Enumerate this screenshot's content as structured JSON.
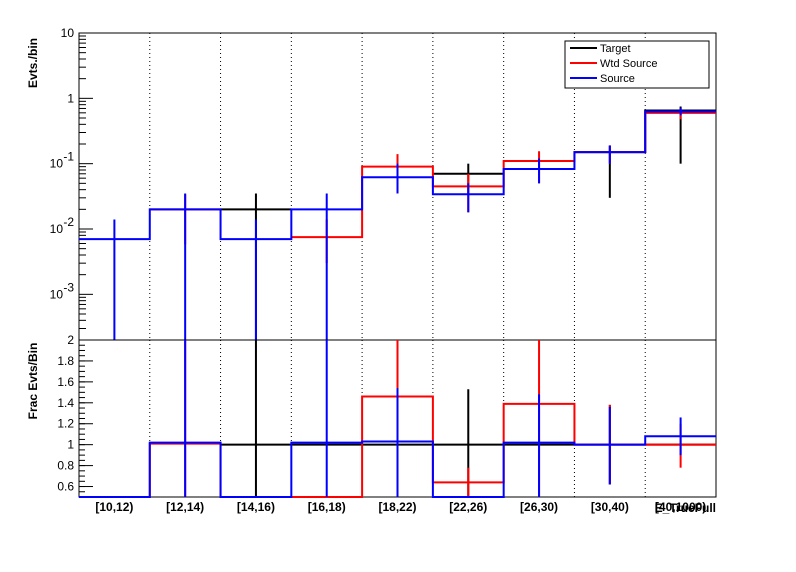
{
  "chart_data": [
    {
      "type": "line",
      "panel": "top",
      "ylabel": "Evts./bin",
      "yscale": "log",
      "ylim": [
        0.0002,
        10
      ],
      "y_ticks": [
        {
          "value": 10,
          "label": "10"
        },
        {
          "value": 1,
          "label": "1"
        },
        {
          "value": 0.1,
          "label": "10",
          "exp": "-1"
        },
        {
          "value": 0.01,
          "label": "10",
          "exp": "-2"
        },
        {
          "value": 0.001,
          "label": "10",
          "exp": "-3"
        }
      ],
      "categories": [
        "[10,12)",
        "[12,14)",
        "[14,16)",
        "[16,18)",
        "[18,22)",
        "[22,26)",
        "[26,30)",
        "[30,40)",
        "[40,1000)"
      ],
      "grid": "vertical-dotted",
      "legend": {
        "position": "top-right",
        "entries": [
          "Target",
          "Wtd Source",
          "Source"
        ]
      },
      "series": [
        {
          "name": "Target",
          "color": "#000000",
          "values": [
            null,
            null,
            0.02,
            null,
            null,
            0.07,
            null,
            0.15,
            0.65
          ],
          "err_lo": [
            null,
            null,
            null,
            null,
            null,
            0.035,
            null,
            0.03,
            0.1
          ],
          "err_hi": [
            null,
            null,
            0.035,
            null,
            null,
            0.1,
            null,
            0.19,
            0.75
          ]
        },
        {
          "name": "Wtd Source",
          "color": "#ff0000",
          "values": [
            null,
            0.02,
            null,
            0.0075,
            0.09,
            0.045,
            0.11,
            0.15,
            0.6
          ],
          "err_lo": [
            null,
            0.0058,
            null,
            0.003,
            0.035,
            0.018,
            0.05,
            0.1,
            0.48
          ],
          "err_hi": [
            null,
            0.034,
            null,
            0.014,
            0.14,
            0.07,
            0.155,
            0.19,
            0.7
          ]
        },
        {
          "name": "Source",
          "color": "#0000ff",
          "values": [
            0.007,
            0.02,
            0.007,
            0.02,
            0.062,
            0.034,
            0.083,
            0.15,
            0.63
          ],
          "err_lo": [
            null,
            null,
            null,
            null,
            0.035,
            0.018,
            0.05,
            0.1,
            0.55
          ],
          "err_hi": [
            0.014,
            0.035,
            0.014,
            0.035,
            0.1,
            0.05,
            0.12,
            0.19,
            0.72
          ]
        }
      ]
    },
    {
      "type": "line",
      "panel": "bottom",
      "ylabel": "Frac Evts/Bin",
      "ylim": [
        0.5,
        2
      ],
      "y_ticks": [
        0.6,
        0.8,
        1,
        1.2,
        1.4,
        1.6,
        1.8,
        2
      ],
      "categories": [
        "[10,12)",
        "[12,14)",
        "[14,16)",
        "[16,18)",
        "[18,22)",
        "[22,26)",
        "[26,30)",
        "[30,40)",
        "[40,1000)"
      ],
      "xlabel": "E_TrueFull",
      "grid": "vertical-dotted",
      "series": [
        {
          "name": "Target",
          "color": "#000000",
          "values": [
            null,
            null,
            1.0,
            1.0,
            1.0,
            1.0,
            1.0,
            1.0,
            1.0
          ],
          "err_lo": [
            null,
            null,
            0.5,
            null,
            null,
            0.5,
            null,
            0.62,
            null
          ],
          "err_hi": [
            null,
            null,
            2,
            null,
            null,
            1.53,
            null,
            1.38,
            null
          ]
        },
        {
          "name": "Wtd Source",
          "color": "#ff0000",
          "values": [
            0.5,
            1.01,
            0.5,
            0.5,
            1.46,
            0.64,
            1.39,
            1.0,
            1.0
          ],
          "err_lo": [
            null,
            0.5,
            null,
            null,
            0.5,
            0.5,
            0.5,
            0.62,
            0.78
          ],
          "err_hi": [
            null,
            2,
            null,
            null,
            2,
            0.78,
            2,
            1.38,
            1.2
          ]
        },
        {
          "name": "Source",
          "color": "#0000ff",
          "values": [
            0.5,
            1.02,
            0.5,
            1.02,
            1.03,
            0.5,
            1.02,
            1.0,
            1.08
          ],
          "err_lo": [
            null,
            0.5,
            null,
            0.5,
            0.5,
            null,
            0.5,
            0.62,
            0.9
          ],
          "err_hi": [
            null,
            2,
            null,
            2,
            1.54,
            null,
            1.48,
            1.36,
            1.26
          ]
        }
      ]
    }
  ],
  "labels": {
    "top_ylabel": "Evts./bin",
    "bottom_ylabel": "Frac Evts/Bin",
    "xlabel": "E_TrueFull"
  }
}
